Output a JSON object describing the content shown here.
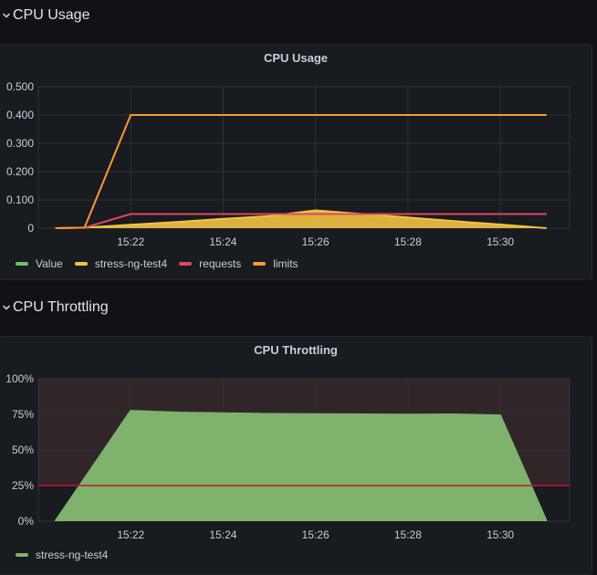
{
  "rows": [
    {
      "title": "CPU Usage"
    },
    {
      "title": "CPU Throttling"
    }
  ],
  "colors": {
    "green": "#73bf69",
    "yellow": "#f2c343",
    "red": "#e0475c",
    "orange": "#ff9830",
    "throttle_fill": "#7eb26d",
    "threshold_bg": "#302628",
    "threshold_line": "#c4162a",
    "grid": "#2f3135"
  },
  "chart_data": [
    {
      "type": "line",
      "title": "CPU Usage",
      "ylim": [
        0,
        0.5
      ],
      "yticks": [
        0,
        0.1,
        0.2,
        0.3,
        0.4,
        0.5
      ],
      "ytick_labels": [
        "0",
        "0.100",
        "0.200",
        "0.300",
        "0.400",
        "0.500"
      ],
      "xlim": [
        "15:20",
        "15:31:30"
      ],
      "xticks": [
        "15:22",
        "15:24",
        "15:26",
        "15:28",
        "15:30"
      ],
      "legend": [
        "Value",
        "stress-ng-test4",
        "requests",
        "limits"
      ],
      "series": [
        {
          "name": "Value",
          "color": "green",
          "x": [],
          "values": []
        },
        {
          "name": "stress-ng-test4",
          "color": "yellow",
          "fill": true,
          "x": [
            "15:20:22",
            "15:21",
            "15:22",
            "15:23",
            "15:24",
            "15:25",
            "15:26",
            "15:27",
            "15:28",
            "15:29",
            "15:30",
            "15:31"
          ],
          "values": [
            0,
            0.002,
            0.012,
            0.022,
            0.033,
            0.043,
            0.063,
            0.05,
            0.038,
            0.025,
            0.013,
            0
          ]
        },
        {
          "name": "requests",
          "color": "red",
          "x": [
            "15:20:22",
            "15:21",
            "15:22",
            "15:31"
          ],
          "values": [
            0,
            0.002,
            0.05,
            0.05
          ]
        },
        {
          "name": "limits",
          "color": "orange",
          "x": [
            "15:20:22",
            "15:21",
            "15:22",
            "15:31"
          ],
          "values": [
            0,
            0.002,
            0.4,
            0.4
          ]
        }
      ]
    },
    {
      "type": "area",
      "title": "CPU Throttling",
      "ylim": [
        0,
        100
      ],
      "yticks": [
        0,
        25,
        50,
        75,
        100
      ],
      "ytick_labels": [
        "0%",
        "25%",
        "50%",
        "75%",
        "100%"
      ],
      "xlim": [
        "15:20",
        "15:31:30"
      ],
      "xticks": [
        "15:22",
        "15:24",
        "15:26",
        "15:28",
        "15:30"
      ],
      "threshold": 25,
      "legend": [
        "stress-ng-test4"
      ],
      "series": [
        {
          "name": "stress-ng-test4",
          "color": "throttle_fill",
          "x": [
            "15:20:22",
            "15:22",
            "15:23",
            "15:24",
            "15:25",
            "15:26",
            "15:27",
            "15:28",
            "15:29",
            "15:30",
            "15:31"
          ],
          "values": [
            0,
            77.5,
            76.3,
            75.8,
            75.3,
            75.2,
            75,
            74.8,
            75,
            74.3,
            0
          ]
        }
      ]
    }
  ]
}
